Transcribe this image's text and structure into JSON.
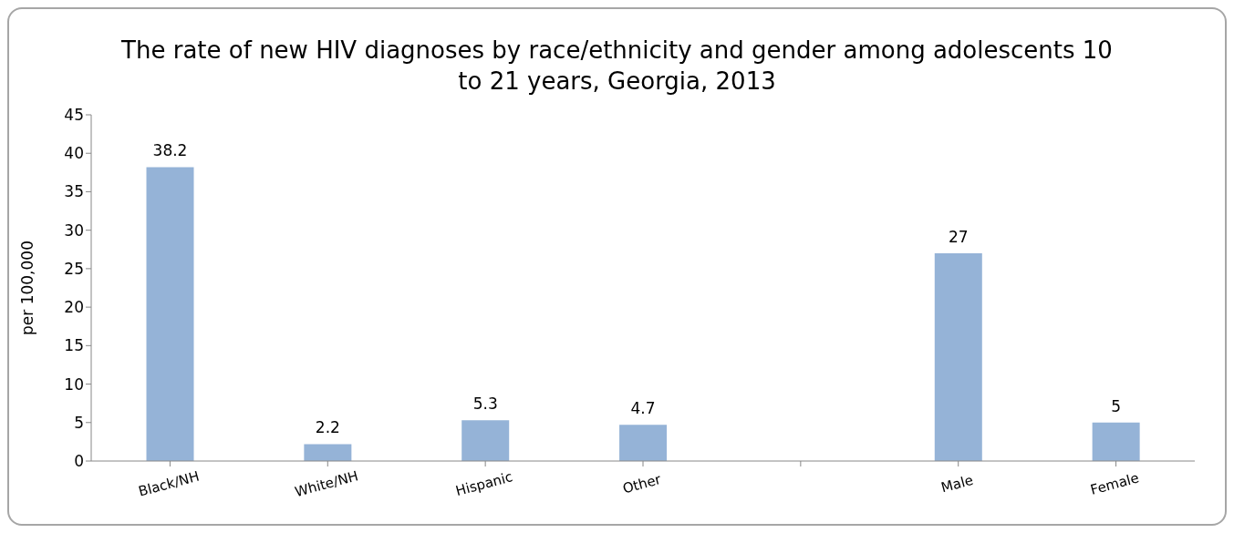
{
  "chart_data": {
    "type": "bar",
    "title": "The rate of new HIV diagnoses by race/ethnicity and gender among adolescents 10 to 21 years, Georgia, 2013",
    "ylabel": "per 100,000",
    "categories": [
      "Black/NH",
      "White/NH",
      "Hispanic",
      "Other",
      null,
      "Male",
      "Female"
    ],
    "values": [
      38.2,
      2.2,
      5.3,
      4.7,
      null,
      27,
      5
    ],
    "color": "#95b3d7",
    "ylim": [
      0,
      45
    ],
    "yticks": [
      0,
      5,
      10,
      15,
      20,
      25,
      30,
      35,
      40,
      45
    ],
    "grid": false,
    "legend": false,
    "data_labels": true
  }
}
